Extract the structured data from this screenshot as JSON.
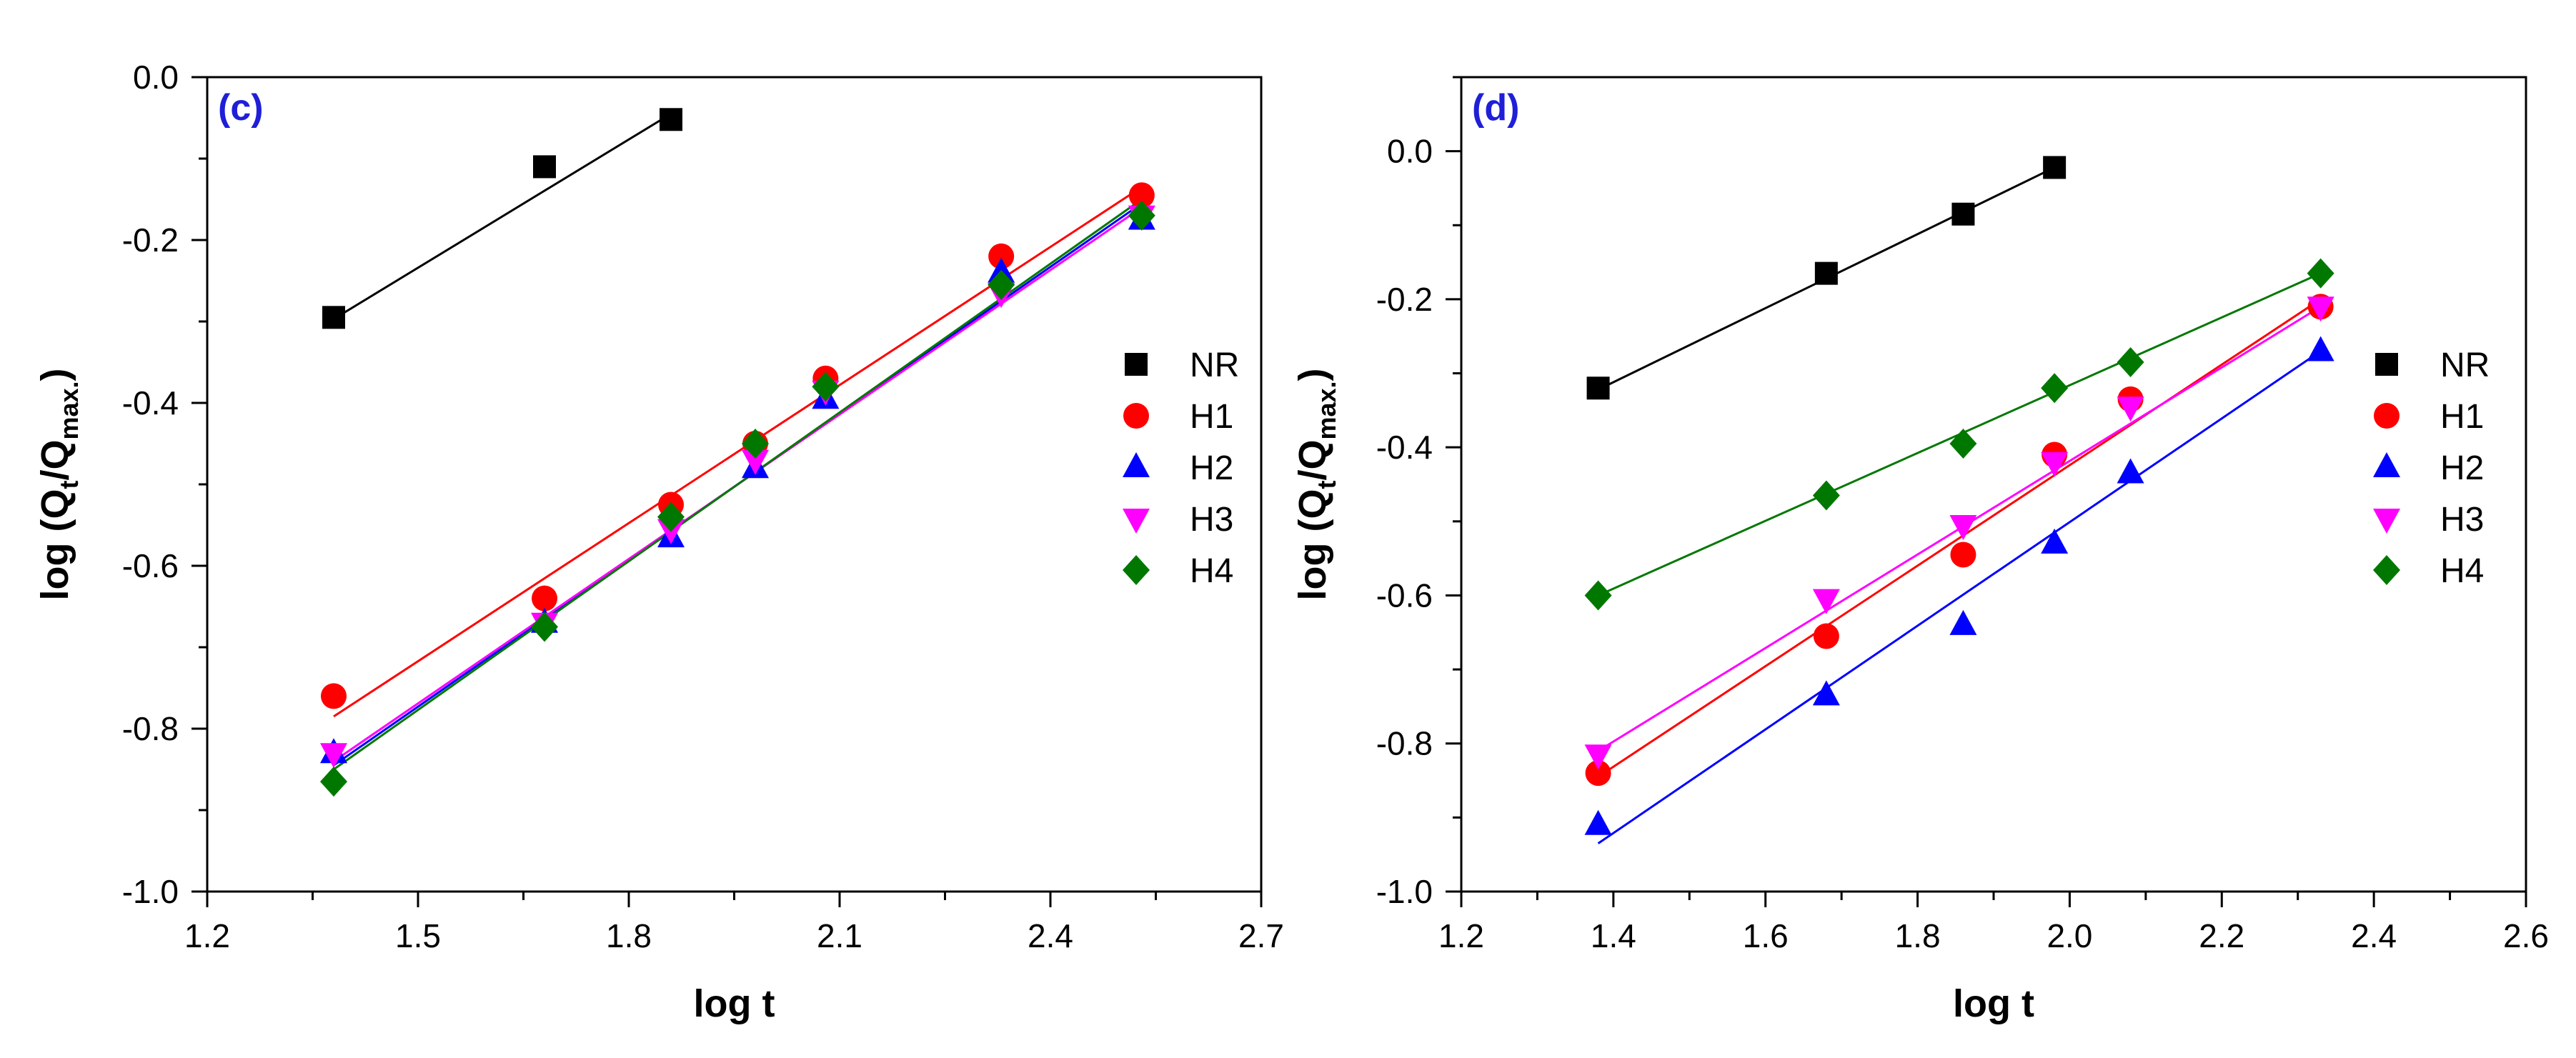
{
  "chart_data": [
    {
      "type": "scatter",
      "panel_label": "(c)",
      "xlabel": "log t",
      "ylabel_main": "log (Q",
      "ylabel_sub1": "t",
      "ylabel_mid": "/Q",
      "ylabel_sub2": "max.",
      "ylabel_end": ")",
      "xlim": [
        1.2,
        2.7
      ],
      "ylim": [
        -1.0,
        0.0
      ],
      "xticks": [
        1.2,
        1.5,
        1.8,
        2.1,
        2.4,
        2.7
      ],
      "xtick_labels": [
        "1.2",
        "1.5",
        "1.8",
        "2.1",
        "2.4",
        "2.7"
      ],
      "yticks": [
        0.0,
        -0.2,
        -0.4,
        -0.6,
        -0.8,
        -1.0
      ],
      "ytick_labels": [
        "0.0",
        "-0.2",
        "-0.4",
        "-0.6",
        "-0.8",
        "-1.0"
      ],
      "legend_position": "center-right",
      "series": [
        {
          "name": "NR",
          "marker": "square",
          "color": "#000000",
          "x": [
            1.38,
            1.68,
            1.86
          ],
          "y": [
            -0.295,
            -0.11,
            -0.052
          ],
          "fit": [
            [
              1.38,
              -0.297
            ],
            [
              1.86,
              -0.045
            ]
          ]
        },
        {
          "name": "H1",
          "marker": "circle",
          "color": "#ff0000",
          "x": [
            1.38,
            1.68,
            1.86,
            1.98,
            2.08,
            2.33,
            2.53
          ],
          "y": [
            -0.76,
            -0.64,
            -0.525,
            -0.45,
            -0.37,
            -0.22,
            -0.145
          ],
          "fit": [
            [
              1.38,
              -0.785
            ],
            [
              2.53,
              -0.135
            ]
          ]
        },
        {
          "name": "H2",
          "marker": "triangle-up",
          "color": "#0000ff",
          "x": [
            1.38,
            1.68,
            1.86,
            1.98,
            2.08,
            2.33,
            2.53
          ],
          "y": [
            -0.83,
            -0.67,
            -0.565,
            -0.48,
            -0.395,
            -0.24,
            -0.175
          ],
          "fit": [
            [
              1.38,
              -0.845
            ],
            [
              2.53,
              -0.155
            ]
          ]
        },
        {
          "name": "H3",
          "marker": "triangle-down",
          "color": "#ff00ff",
          "x": [
            1.38,
            1.68,
            1.86,
            1.98,
            2.08,
            2.33,
            2.53
          ],
          "y": [
            -0.83,
            -0.67,
            -0.555,
            -0.47,
            -0.385,
            -0.265,
            -0.17
          ],
          "fit": [
            [
              1.38,
              -0.84
            ],
            [
              2.53,
              -0.16
            ]
          ]
        },
        {
          "name": "H4",
          "marker": "diamond",
          "color": "#007800",
          "x": [
            1.38,
            1.68,
            1.86,
            1.98,
            2.08,
            2.33,
            2.53
          ],
          "y": [
            -0.865,
            -0.675,
            -0.54,
            -0.45,
            -0.38,
            -0.255,
            -0.17
          ],
          "fit": [
            [
              1.38,
              -0.85
            ],
            [
              2.53,
              -0.15
            ]
          ]
        }
      ]
    },
    {
      "type": "scatter",
      "panel_label": "(d)",
      "xlabel": "log t",
      "ylabel_main": "log (Q",
      "ylabel_sub1": "t",
      "ylabel_mid": "/Q",
      "ylabel_sub2": "max.",
      "ylabel_end": ")",
      "xlim": [
        1.2,
        2.6
      ],
      "ylim": [
        -1.0,
        0.1
      ],
      "xticks": [
        1.2,
        1.4,
        1.6,
        1.8,
        2.0,
        2.2,
        2.4,
        2.6
      ],
      "xtick_labels": [
        "1.2",
        "1.4",
        "1.6",
        "1.8",
        "2.0",
        "2.2",
        "2.4",
        "2.6"
      ],
      "yticks": [
        0.0,
        -0.2,
        -0.4,
        -0.6,
        -0.8,
        -1.0
      ],
      "ytick_labels": [
        "0.0",
        "-0.2",
        "-0.4",
        "-0.6",
        "-0.8",
        "-1.0"
      ],
      "legend_position": "center-right",
      "series": [
        {
          "name": "NR",
          "marker": "square",
          "color": "#000000",
          "x": [
            1.38,
            1.68,
            1.86,
            1.98
          ],
          "y": [
            -0.32,
            -0.165,
            -0.085,
            -0.022
          ],
          "fit": [
            [
              1.38,
              -0.322
            ],
            [
              1.98,
              -0.022
            ]
          ]
        },
        {
          "name": "H1",
          "marker": "circle",
          "color": "#ff0000",
          "x": [
            1.38,
            1.68,
            1.86,
            1.98,
            2.08,
            2.33
          ],
          "y": [
            -0.84,
            -0.655,
            -0.545,
            -0.41,
            -0.335,
            -0.21
          ],
          "fit": [
            [
              1.38,
              -0.845
            ],
            [
              2.33,
              -0.2
            ]
          ]
        },
        {
          "name": "H2",
          "marker": "triangle-up",
          "color": "#0000ff",
          "x": [
            1.38,
            1.68,
            1.86,
            1.98,
            2.08,
            2.33
          ],
          "y": [
            -0.91,
            -0.735,
            -0.64,
            -0.53,
            -0.435,
            -0.27
          ],
          "fit": [
            [
              1.38,
              -0.935
            ],
            [
              2.33,
              -0.27
            ]
          ]
        },
        {
          "name": "H3",
          "marker": "triangle-down",
          "color": "#ff00ff",
          "x": [
            1.38,
            1.68,
            1.86,
            1.98,
            2.08,
            2.33
          ],
          "y": [
            -0.815,
            -0.605,
            -0.505,
            -0.42,
            -0.345,
            -0.21
          ],
          "fit": [
            [
              1.38,
              -0.81
            ],
            [
              2.33,
              -0.21
            ]
          ]
        },
        {
          "name": "H4",
          "marker": "diamond",
          "color": "#007800",
          "x": [
            1.38,
            1.68,
            1.86,
            1.98,
            2.08,
            2.33
          ],
          "y": [
            -0.6,
            -0.465,
            -0.395,
            -0.32,
            -0.285,
            -0.165
          ],
          "fit": [
            [
              1.38,
              -0.6
            ],
            [
              2.33,
              -0.165
            ]
          ]
        }
      ]
    }
  ]
}
